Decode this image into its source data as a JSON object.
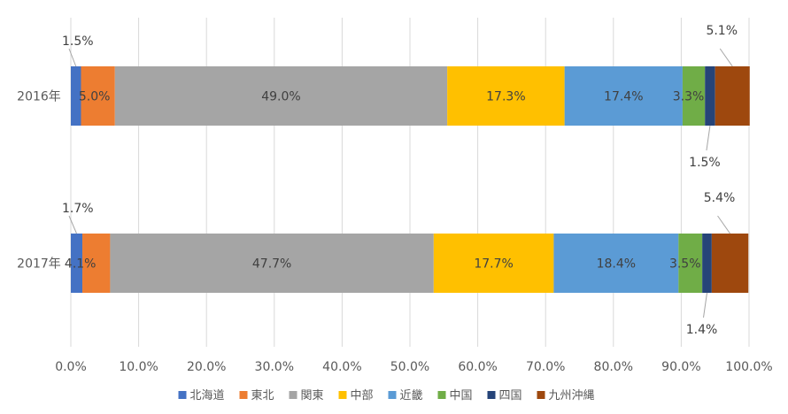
{
  "chart_data": {
    "type": "bar",
    "orientation": "horizontal",
    "stacked": "percent",
    "categories": [
      "2016年",
      "2017年"
    ],
    "series": [
      {
        "name": "北海道",
        "color": "#4472C4",
        "values": [
          1.5,
          1.7
        ],
        "labels": [
          "1.5%",
          "1.7%"
        ]
      },
      {
        "name": "東北",
        "color": "#ED7D31",
        "values": [
          5.0,
          4.1
        ],
        "labels": [
          "5.0%",
          "4.1%"
        ]
      },
      {
        "name": "関東",
        "color": "#A5A5A5",
        "values": [
          49.0,
          47.7
        ],
        "labels": [
          "49.0%",
          "47.7%"
        ]
      },
      {
        "name": "中部",
        "color": "#FFC000",
        "values": [
          17.3,
          17.7
        ],
        "labels": [
          "17.3%",
          "17.7%"
        ]
      },
      {
        "name": "近畿",
        "color": "#5B9BD5",
        "values": [
          17.4,
          18.4
        ],
        "labels": [
          "17.4%",
          "18.4%"
        ]
      },
      {
        "name": "中国",
        "color": "#70AD47",
        "values": [
          3.3,
          3.5
        ],
        "labels": [
          "3.3%",
          "3.5%"
        ]
      },
      {
        "name": "四国",
        "color": "#264478",
        "values": [
          1.5,
          1.4
        ],
        "labels": [
          "1.5%",
          "1.4%"
        ]
      },
      {
        "name": "九州沖縄",
        "color": "#9E480E",
        "values": [
          5.1,
          5.4
        ],
        "labels": [
          "5.1%",
          "5.4%"
        ]
      }
    ],
    "xlim": [
      0,
      100
    ],
    "xticks": [
      "0.0%",
      "10.0%",
      "20.0%",
      "30.0%",
      "40.0%",
      "50.0%",
      "60.0%",
      "70.0%",
      "80.0%",
      "90.0%",
      "100.0%"
    ],
    "grid": true,
    "legend": "bottom"
  }
}
